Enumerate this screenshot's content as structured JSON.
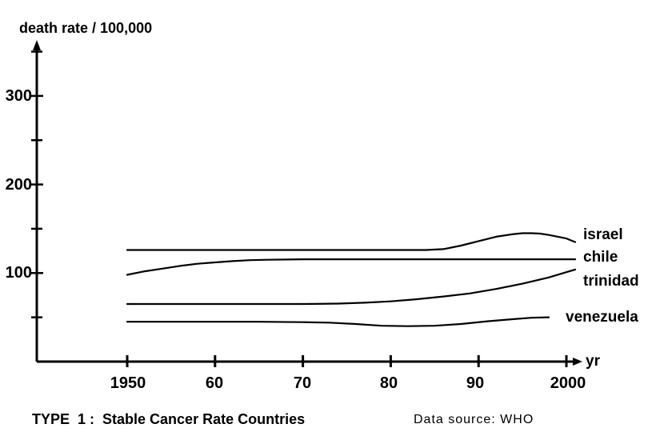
{
  "colors": {
    "ink": "#000000",
    "background": "#ffffff"
  },
  "chart_data": {
    "type": "line",
    "title": "TYPE  1 :  Stable Cancer Rate Countries",
    "source": "Data source: WHO",
    "xlabel": "yr",
    "ylabel": "death rate / 100,000",
    "xlim": [
      1939.8,
      2001.5
    ],
    "ylim": [
      0,
      359
    ],
    "grid": false,
    "legend_position": "labels-at-line-ends-right",
    "line_color": "#000000",
    "x_ticks": [
      {
        "value": 1950,
        "label": "1950"
      },
      {
        "value": 1960,
        "label": "60"
      },
      {
        "value": 1970,
        "label": "70"
      },
      {
        "value": 1980,
        "label": "80"
      },
      {
        "value": 1990,
        "label": "90"
      },
      {
        "value": 2000,
        "label": "2000"
      }
    ],
    "y_ticks": [
      {
        "value": 300,
        "label": "300"
      },
      {
        "value": 200,
        "label": "200"
      },
      {
        "value": 100,
        "label": "100"
      }
    ],
    "y_minor_ticks": [
      350,
      250,
      150,
      50
    ],
    "series": [
      {
        "name": "israel",
        "x": [
          1950,
          1955,
          1960,
          1965,
          1970,
          1975,
          1980,
          1984,
          1986,
          1988,
          1990,
          1992,
          1994,
          1995,
          1996,
          1997,
          1998,
          2000,
          2001
        ],
        "values": [
          126,
          126,
          126,
          126,
          126,
          126,
          126,
          126,
          127,
          131,
          136,
          141,
          144,
          145,
          145,
          144.5,
          143,
          139,
          135
        ]
      },
      {
        "name": "chile",
        "x": [
          1950,
          1952,
          1954,
          1956,
          1958,
          1960,
          1962,
          1964,
          1966,
          1970,
          1980,
          1990,
          2001
        ],
        "values": [
          98,
          102,
          105,
          108,
          110.5,
          112,
          113.5,
          114.5,
          115,
          115.5,
          115.5,
          115.5,
          115.5
        ]
      },
      {
        "name": "trinidad",
        "x": [
          1950,
          1955,
          1960,
          1965,
          1970,
          1974,
          1977,
          1980,
          1983,
          1986,
          1989,
          1992,
          1995,
          1998,
          2000,
          2001
        ],
        "values": [
          65,
          65,
          65,
          65,
          65,
          65.5,
          66.5,
          68,
          70.5,
          73.5,
          77,
          82,
          88,
          95,
          101,
          104
        ]
      },
      {
        "name": "venezuela",
        "x": [
          1950,
          1955,
          1960,
          1965,
          1970,
          1973,
          1976,
          1979,
          1982,
          1985,
          1988,
          1991,
          1994,
          1996,
          1998
        ],
        "values": [
          45,
          45,
          45,
          45,
          44.5,
          44,
          42.5,
          40.5,
          40,
          40.5,
          42.5,
          45.5,
          48,
          49.5,
          50
        ]
      }
    ]
  }
}
